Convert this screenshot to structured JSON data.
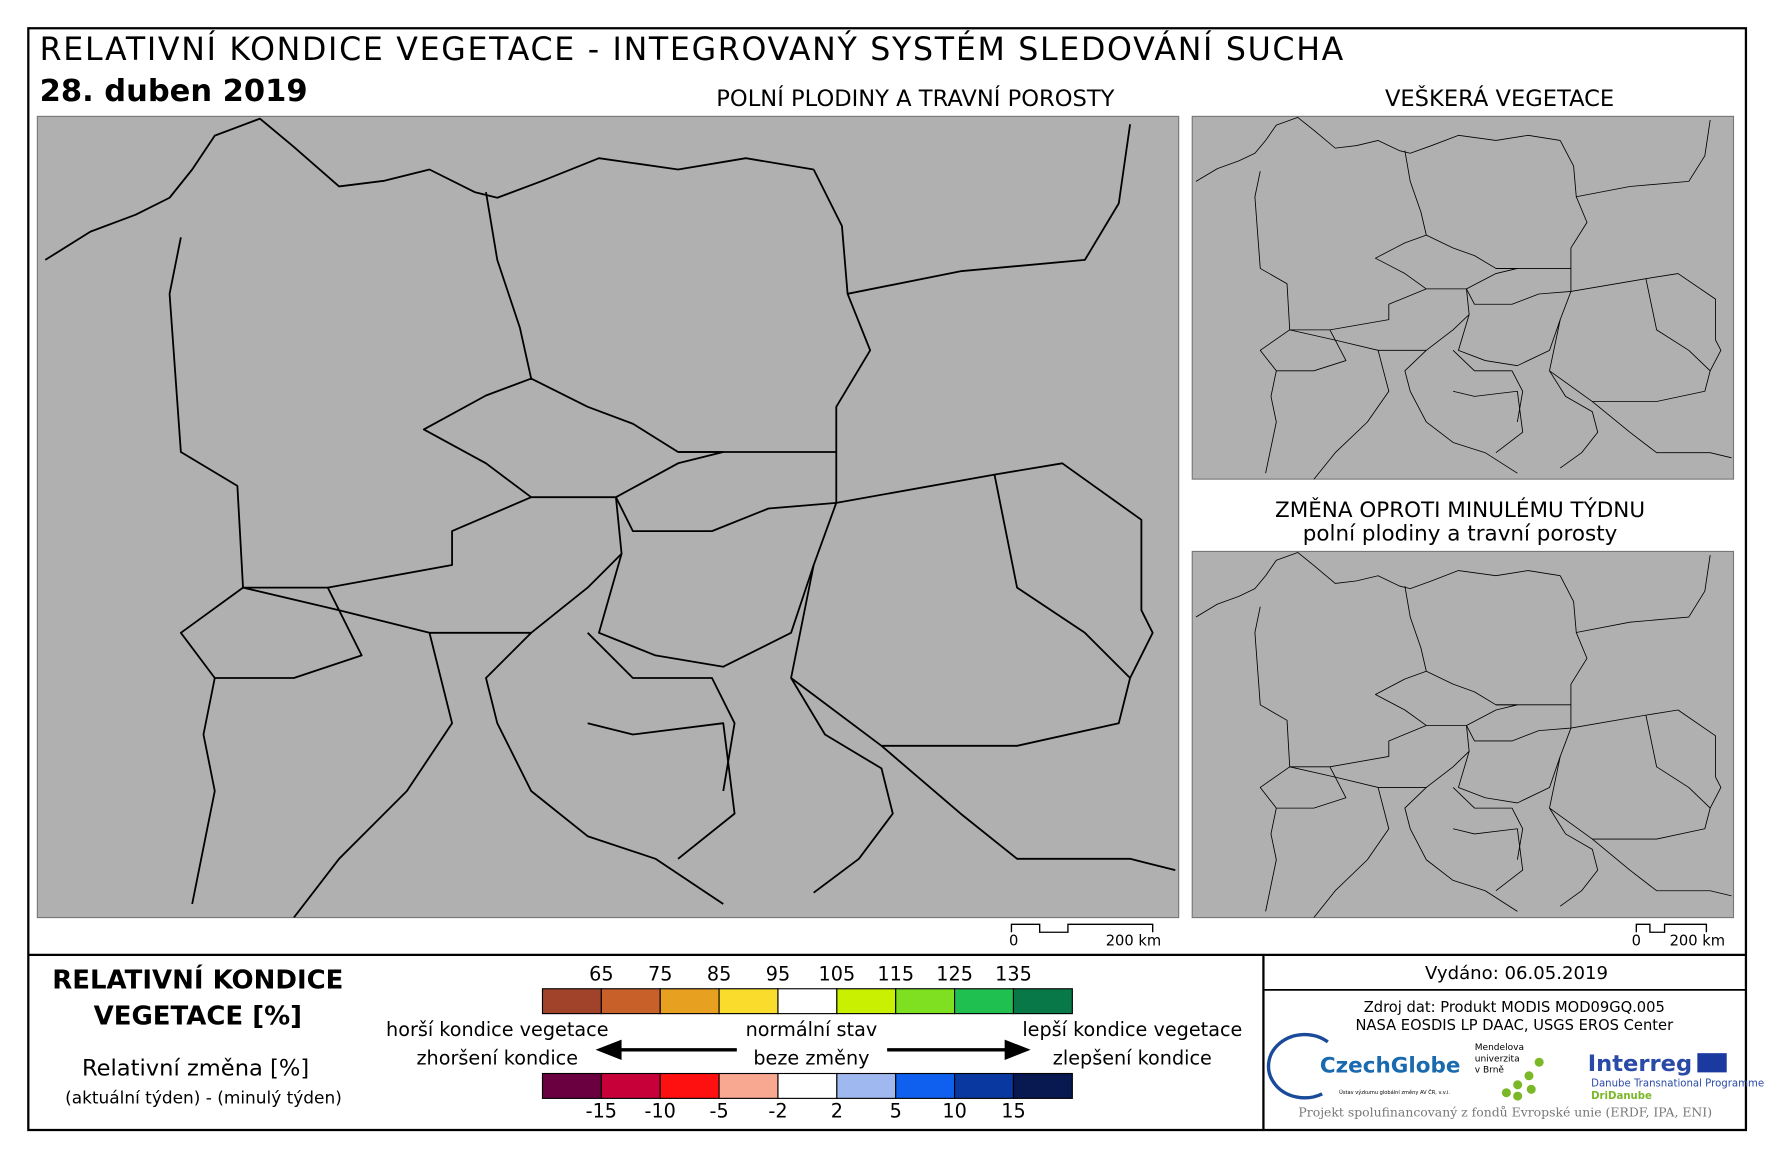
{
  "header": {
    "title": "RELATIVNÍ KONDICE VEGETACE - INTEGROVANÝ SYSTÉM SLEDOVÁNÍ SUCHA",
    "date": "28. duben 2019"
  },
  "maps": [
    {
      "label": "POLNÍ PLODINY A TRAVNÍ POROSTY"
    },
    {
      "label": "VEŠKERÁ VEGETACE"
    },
    {
      "label": "ZMĚNA OPROTI MINULÉMU TÝDNU",
      "sublabel": "polní plodiny a travní porosty"
    }
  ],
  "scale_bars": [
    {
      "start": "0",
      "end": "200 km"
    },
    {
      "start": "0",
      "end": "200 km"
    }
  ],
  "legend": {
    "title": [
      "RELATIVNÍ KONDICE",
      "VEGETACE [%]"
    ],
    "change_title": "Relativní změna [%]",
    "change_note": "(aktuální týden) - (minulý týden)",
    "condition_scale": {
      "labels": [
        65,
        75,
        85,
        95,
        105,
        115,
        125,
        135
      ],
      "colors": [
        "#a0432a",
        "#c8602a",
        "#e8a020",
        "#fadd2c",
        "#ffffff",
        "#c8f000",
        "#7ee020",
        "#20c050",
        "#087848"
      ]
    },
    "change_scale": {
      "labels": [
        -15,
        -10,
        -5,
        -2,
        2,
        5,
        10,
        15
      ],
      "colors": [
        "#6a0040",
        "#c8003a",
        "#ff1010",
        "#f8a890",
        "#ffffff",
        "#a0b8f0",
        "#1060f0",
        "#0838a0",
        "#081850"
      ]
    },
    "worse": [
      "horší kondice vegetace",
      "zhoršení kondice"
    ],
    "normal": [
      "normální stav",
      "beze změny"
    ],
    "better": [
      "lepší kondice vegetace",
      "zlepšení kondice"
    ]
  },
  "info": {
    "issued": "Vydáno: 06.05.2019",
    "source": [
      "Zdroj dat: Produkt MODIS MOD09GQ.005",
      "NASA EOSDIS LP DAAC, USGS EROS Center"
    ],
    "footer": "Projekt spolufinancovaný z fondů Evropské unie (ERDF, IPA, ENI)"
  },
  "logos": {
    "czechglobe": "CzechGlobe",
    "czechglobe_note": "Ústav výzkumu globální změny AV ČR, v.v.i.",
    "mendel": [
      "Mendelova",
      "univerzita",
      "v Brně"
    ],
    "interreg": "Interreg",
    "interreg_note": "Danube Transnational Programme",
    "dridanube": "DriDanube"
  }
}
